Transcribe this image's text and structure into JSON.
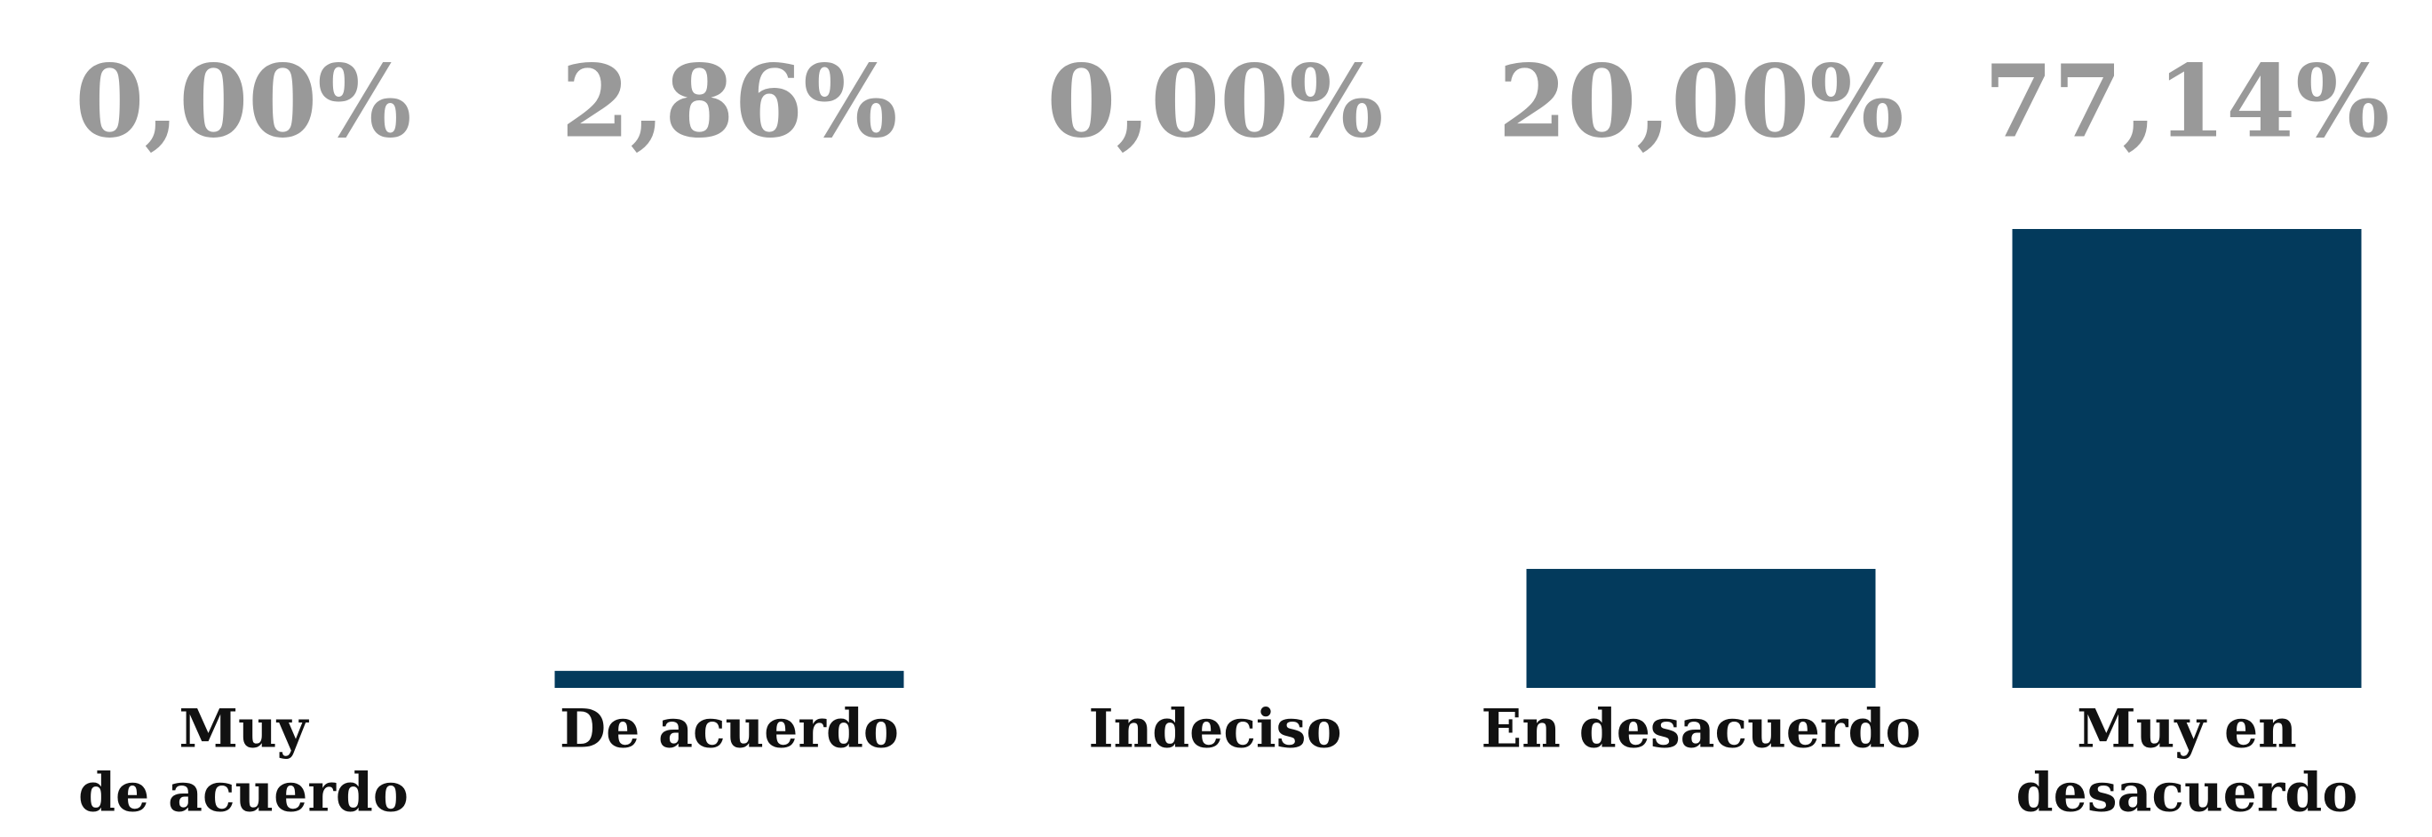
{
  "chart_data": {
    "type": "bar",
    "categories": [
      [
        "Muy",
        "de acuerdo"
      ],
      [
        "De acuerdo"
      ],
      [
        "Indeciso"
      ],
      [
        "En desacuerdo"
      ],
      [
        "Muy en",
        "desacuerdo"
      ]
    ],
    "values": [
      0,
      2.86,
      0,
      20,
      77.14
    ],
    "value_labels": [
      "0,00%",
      "2,86%",
      "0,00%",
      "20,00%",
      "77,14%"
    ],
    "color": "#033a5c"
  }
}
